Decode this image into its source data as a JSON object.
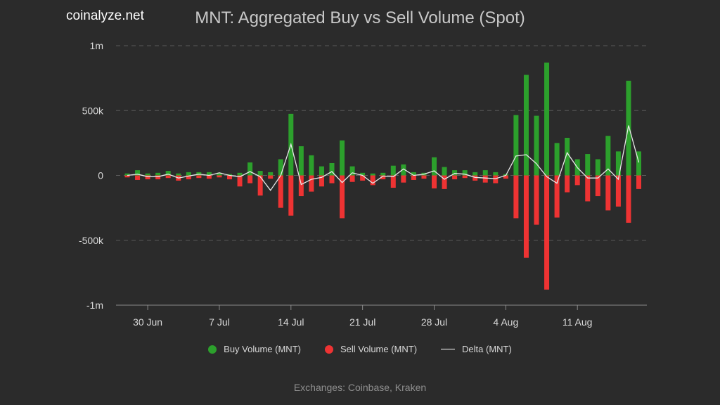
{
  "brand": "coinalyze.net",
  "footer": "Exchanges: Coinbase, Kraken",
  "legend": {
    "buy": "Buy Volume (MNT)",
    "sell": "Sell Volume (MNT)",
    "delta": "Delta (MNT)"
  },
  "colors": {
    "buy": "#2ca02c",
    "sell": "#ee3333",
    "delta": "#e8e8e8",
    "grid": "#5a5a5a"
  },
  "chart_data": {
    "type": "bar",
    "title": "MNT: Aggregated Buy vs Sell Volume (Spot)",
    "xlabel": "",
    "ylabel": "",
    "ylim": [
      -1000000,
      1000000
    ],
    "yticks": [
      1000000,
      500000,
      0,
      -500000,
      -1000000
    ],
    "ytick_labels": [
      "1m",
      "500k",
      "0",
      "-500k",
      "-1m"
    ],
    "xtick_labels": [
      "30 Jun",
      "7 Jul",
      "14 Jul",
      "21 Jul",
      "28 Jul",
      "4 Aug",
      "11 Aug"
    ],
    "xtick_index": [
      2,
      9,
      16,
      23,
      30,
      37,
      44
    ],
    "categories": [
      "2023-06-28",
      "2023-06-29",
      "2023-06-30",
      "2023-07-01",
      "2023-07-02",
      "2023-07-03",
      "2023-07-04",
      "2023-07-05",
      "2023-07-06",
      "2023-07-07",
      "2023-07-08",
      "2023-07-09",
      "2023-07-10",
      "2023-07-11",
      "2023-07-12",
      "2023-07-13",
      "2023-07-14",
      "2023-07-15",
      "2023-07-16",
      "2023-07-17",
      "2023-07-18",
      "2023-07-19",
      "2023-07-20",
      "2023-07-21",
      "2023-07-22",
      "2023-07-23",
      "2023-07-24",
      "2023-07-25",
      "2023-07-26",
      "2023-07-27",
      "2023-07-28",
      "2023-07-29",
      "2023-07-30",
      "2023-07-31",
      "2023-08-01",
      "2023-08-02",
      "2023-08-03",
      "2023-08-04",
      "2023-08-05",
      "2023-08-06",
      "2023-08-07",
      "2023-08-08",
      "2023-08-09",
      "2023-08-10",
      "2023-08-11",
      "2023-08-12",
      "2023-08-13",
      "2023-08-14",
      "2023-08-15",
      "2023-08-16",
      "2023-08-17"
    ],
    "series": [
      {
        "name": "Buy Volume (MNT)",
        "values": [
          15000,
          40000,
          15000,
          20000,
          35000,
          15000,
          25000,
          25000,
          25000,
          20000,
          10000,
          20000,
          100000,
          35000,
          25000,
          125000,
          475000,
          225000,
          155000,
          70000,
          95000,
          270000,
          70000,
          20000,
          15000,
          20000,
          75000,
          85000,
          25000,
          20000,
          140000,
          65000,
          40000,
          40000,
          25000,
          40000,
          25000,
          10000,
          465000,
          775000,
          460000,
          870000,
          250000,
          290000,
          125000,
          165000,
          125000,
          305000,
          185000,
          730000,
          185000
        ]
      },
      {
        "name": "Sell Volume (MNT)",
        "values": [
          -15000,
          -35000,
          -30000,
          -30000,
          -20000,
          -40000,
          -30000,
          -20000,
          -25000,
          -15000,
          -30000,
          -85000,
          -60000,
          -155000,
          -25000,
          -250000,
          -310000,
          -160000,
          -125000,
          -85000,
          -60000,
          -330000,
          -50000,
          -40000,
          -75000,
          -30000,
          -95000,
          -55000,
          -35000,
          -25000,
          -100000,
          -105000,
          -30000,
          -20000,
          -40000,
          -55000,
          -60000,
          -25000,
          -330000,
          -635000,
          -380000,
          -880000,
          -325000,
          -130000,
          -75000,
          -200000,
          -160000,
          -270000,
          -240000,
          -365000,
          -105000
        ]
      },
      {
        "name": "Delta (MNT)",
        "values": [
          0,
          10000,
          -10000,
          -10000,
          10000,
          -20000,
          -5000,
          10000,
          0,
          20000,
          0,
          -10000,
          30000,
          -10000,
          -115000,
          0,
          240000,
          -70000,
          -30000,
          -15000,
          30000,
          -55000,
          20000,
          0,
          -60000,
          -5000,
          -10000,
          50000,
          0,
          10000,
          35000,
          -30000,
          15000,
          10000,
          -15000,
          -20000,
          -25000,
          0,
          150000,
          160000,
          90000,
          -10000,
          -60000,
          175000,
          60000,
          -20000,
          -20000,
          50000,
          -30000,
          385000,
          100000
        ]
      }
    ]
  }
}
